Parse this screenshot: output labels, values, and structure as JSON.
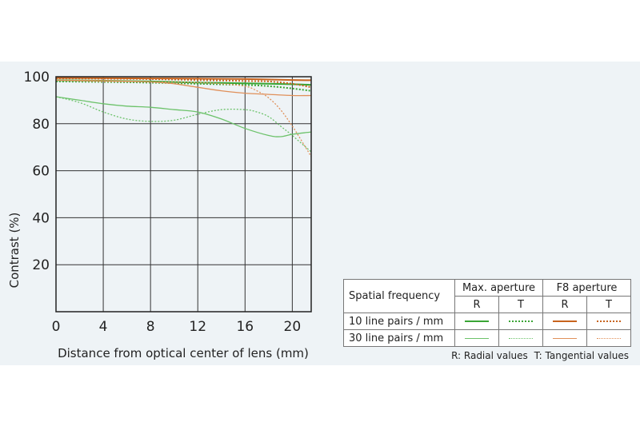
{
  "chart_data": {
    "type": "line",
    "title": "",
    "xlabel": "Distance from optical center of lens (mm)",
    "ylabel": "Contrast (%)",
    "xlim": [
      0,
      21.6
    ],
    "ylim": [
      0,
      100
    ],
    "xticks": [
      "0",
      "4",
      "8",
      "12",
      "16",
      "20"
    ],
    "yticks": [
      "20",
      "40",
      "60",
      "80",
      "100"
    ],
    "grid": true,
    "legend_position": "bottom-right",
    "series": [
      {
        "group": "10 line pairs / mm",
        "aperture": "Max. aperture",
        "type": "R",
        "color": "#3aa535",
        "dash": "solid",
        "x": [
          0,
          4,
          8,
          12,
          16,
          20,
          21.6
        ],
        "y": [
          98.5,
          98.3,
          98.0,
          97.5,
          97.2,
          96.8,
          96.5
        ]
      },
      {
        "group": "10 line pairs / mm",
        "aperture": "Max. aperture",
        "type": "T",
        "color": "#3aa535",
        "dash": "dotted",
        "x": [
          0,
          4,
          8,
          12,
          16,
          18,
          20,
          21.6
        ],
        "y": [
          98.0,
          97.8,
          97.5,
          97.0,
          96.5,
          96.0,
          95.0,
          94.0
        ]
      },
      {
        "group": "30 line pairs / mm",
        "aperture": "Max. aperture",
        "type": "R",
        "color": "#6cc26a",
        "dash": "solid",
        "x": [
          0,
          2,
          4,
          6,
          8,
          10,
          12,
          14,
          16,
          18,
          19,
          20,
          21.6
        ],
        "y": [
          91.5,
          90.0,
          88.5,
          87.5,
          87.0,
          86.0,
          85.0,
          82.0,
          78.0,
          75.0,
          74.5,
          75.5,
          76.5
        ]
      },
      {
        "group": "30 line pairs / mm",
        "aperture": "Max. aperture",
        "type": "T",
        "color": "#6cc26a",
        "dash": "dotted",
        "x": [
          0,
          2,
          4,
          6,
          8,
          10,
          12,
          14,
          16,
          17,
          18,
          19,
          20,
          21.6
        ],
        "y": [
          91.5,
          89.0,
          85.0,
          82.0,
          81.0,
          81.5,
          84.0,
          86.0,
          86.0,
          85.0,
          83.0,
          79.0,
          75.0,
          68.0
        ]
      },
      {
        "group": "10 line pairs / mm",
        "aperture": "F8 aperture",
        "type": "R",
        "color": "#c8641e",
        "dash": "solid",
        "x": [
          0,
          4,
          8,
          12,
          16,
          20,
          21.6
        ],
        "y": [
          99.5,
          99.4,
          99.3,
          99.2,
          99.0,
          98.6,
          98.5
        ]
      },
      {
        "group": "10 line pairs / mm",
        "aperture": "F8 aperture",
        "type": "T",
        "color": "#c8641e",
        "dash": "dotted",
        "x": [
          0,
          4,
          8,
          12,
          16,
          18,
          20,
          21.6
        ],
        "y": [
          99.3,
          99.2,
          99.0,
          98.6,
          98.2,
          98.0,
          97.0,
          95.5
        ]
      },
      {
        "group": "30 line pairs / mm",
        "aperture": "F8 aperture",
        "type": "R",
        "color": "#e0905a",
        "dash": "solid",
        "x": [
          0,
          4,
          8,
          10,
          12,
          14,
          16,
          18,
          20,
          21.6
        ],
        "y": [
          98.5,
          98.3,
          97.8,
          97.0,
          95.5,
          94.0,
          93.0,
          92.5,
          92.0,
          92.0
        ]
      },
      {
        "group": "30 line pairs / mm",
        "aperture": "F8 aperture",
        "type": "T",
        "color": "#e0905a",
        "dash": "dotted",
        "x": [
          0,
          4,
          8,
          12,
          14,
          16,
          17,
          18,
          19,
          20,
          21,
          21.6
        ],
        "y": [
          98.5,
          98.0,
          97.8,
          97.5,
          97.0,
          96.0,
          94.0,
          91.0,
          86.0,
          79.0,
          71.0,
          66.0
        ]
      }
    ]
  },
  "legend": {
    "header_label": "Spatial frequency",
    "max_aperture": "Max. aperture",
    "f8_aperture": "F8 aperture",
    "r": "R",
    "t": "T",
    "row_10": "10 line pairs / mm",
    "row_30": "30 line pairs / mm"
  },
  "footnote": {
    "radial": "R: Radial values",
    "tangential": "T: Tangential values"
  }
}
